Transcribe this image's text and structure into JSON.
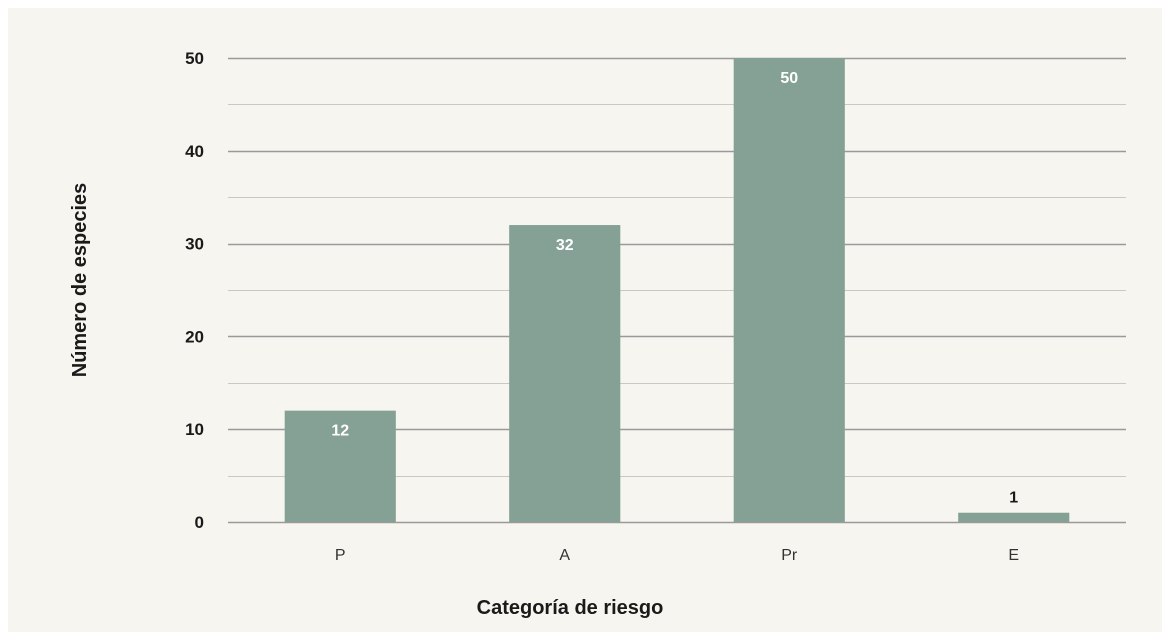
{
  "chart_data": {
    "type": "bar",
    "categories": [
      "P",
      "A",
      "Pr",
      "E"
    ],
    "values": [
      12,
      32,
      50,
      1
    ],
    "data_labels": [
      "12",
      "32",
      "50",
      "1"
    ],
    "title": "",
    "xlabel": "Categoría de riesgo",
    "ylabel": "Número de especies",
    "ylim": [
      0,
      50
    ],
    "yticks": [
      0,
      10,
      20,
      30,
      40,
      50
    ],
    "ytick_labels": [
      "0",
      "10",
      "20",
      "30",
      "40",
      "50"
    ],
    "minor_grid_step": 5,
    "grid": true,
    "legend": "none",
    "colors": {
      "bar": "#85a196",
      "label_inside": "#ffffff",
      "label_outside": "#1a1a1a",
      "grid_major": "#9a9a9a",
      "grid_minor": "#c9c9c4",
      "background": "#f6f5f0"
    }
  }
}
